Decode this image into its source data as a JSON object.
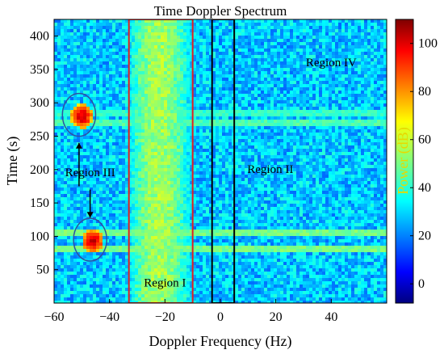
{
  "chart_data": {
    "type": "heatmap",
    "title": "Time Doppler Spectrum",
    "xlabel": "Doppler Frequency (Hz)",
    "ylabel": "Time (s)",
    "colorbar_label": "Power (dB)",
    "xlim": [
      -60,
      60
    ],
    "ylim": [
      0,
      425
    ],
    "clim": [
      -8,
      110
    ],
    "xticks": [
      -60,
      -40,
      -20,
      0,
      20,
      40
    ],
    "yticks": [
      50,
      100,
      150,
      200,
      250,
      300,
      350,
      400
    ],
    "cticks": [
      0,
      20,
      40,
      60,
      80,
      100
    ],
    "colormap": "jet",
    "background_level_db": 30,
    "features": [
      {
        "kind": "vertical_band",
        "x_range": [
          -32,
          -12
        ],
        "level_db": 55
      },
      {
        "kind": "horizontal_line",
        "y": 270,
        "level_db": 45
      },
      {
        "kind": "horizontal_line",
        "y": 283,
        "level_db": 42
      },
      {
        "kind": "horizontal_line",
        "y": 105,
        "level_db": 50
      },
      {
        "kind": "horizontal_line",
        "y": 80,
        "level_db": 50
      },
      {
        "kind": "blob",
        "x": -50,
        "y": 280,
        "level_db": 100
      },
      {
        "kind": "blob",
        "x": -46,
        "y": 93,
        "level_db": 100
      }
    ],
    "boxes": [
      {
        "name": "Region I",
        "x_range": [
          -33,
          -10
        ],
        "y_range": [
          0,
          425
        ],
        "color": "#e02020"
      },
      {
        "name": "Region II box",
        "x_range": [
          -3,
          5
        ],
        "y_range": [
          0,
          425
        ],
        "color": "#000000"
      }
    ],
    "ellipses": [
      {
        "name": "Region III upper",
        "cx": -51,
        "cy": 282,
        "rx": 6,
        "ry": 32,
        "color": "#3050a0"
      },
      {
        "name": "Region III lower",
        "cx": -47,
        "cy": 95,
        "rx": 6,
        "ry": 32,
        "color": "#3050a0"
      }
    ],
    "annotations": [
      {
        "text": "Region I",
        "x": -20,
        "y": 25
      },
      {
        "text": "Region II",
        "x": 18,
        "y": 195
      },
      {
        "text": "Region III",
        "x": -47,
        "y": 190
      },
      {
        "text": "Region IV",
        "x": 40,
        "y": 355
      }
    ],
    "arrows": [
      {
        "from": [
          -51,
          175
        ],
        "to": [
          -51,
          240
        ]
      },
      {
        "from": [
          -47,
          170
        ],
        "to": [
          -47,
          128
        ]
      }
    ]
  }
}
